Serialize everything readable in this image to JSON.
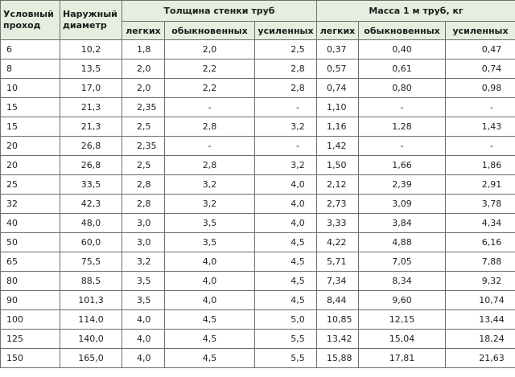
{
  "table": {
    "headers": {
      "nominal": "Условный проход",
      "outer": "Наружный диаметр",
      "wall_group": "Толщина стенки труб",
      "mass_group": "Масса 1 м труб, кг",
      "wall_sub": [
        "легких",
        "обыкновенных",
        "усиленных"
      ],
      "mass_sub": [
        "легких",
        "обыкновенных",
        "усиленных"
      ]
    },
    "rows": [
      [
        "6",
        "10,2",
        "1,8",
        "2,0",
        "2,5",
        "0,37",
        "0,40",
        "0,47"
      ],
      [
        "8",
        "13,5",
        "2,0",
        "2,2",
        "2,8",
        "0,57",
        "0,61",
        "0,74"
      ],
      [
        "10",
        "17,0",
        "2,0",
        "2,2",
        "2,8",
        "0,74",
        "0,80",
        "0,98"
      ],
      [
        "15",
        "21,3",
        "2,35",
        "-",
        "-",
        "1,10",
        "-",
        "-"
      ],
      [
        "15",
        "21,3",
        "2,5",
        "2,8",
        "3,2",
        "1,16",
        "1,28",
        "1,43"
      ],
      [
        "20",
        "26,8",
        "2,35",
        "-",
        "-",
        "1,42",
        "-",
        "-"
      ],
      [
        "20",
        "26,8",
        "2,5",
        "2,8",
        "3,2",
        "1,50",
        "1,66",
        "1,86"
      ],
      [
        "25",
        "33,5",
        "2,8",
        "3,2",
        "4,0",
        "2,12",
        "2,39",
        "2,91"
      ],
      [
        "32",
        "42,3",
        "2,8",
        "3,2",
        "4,0",
        "2,73",
        "3,09",
        "3,78"
      ],
      [
        "40",
        "48,0",
        "3,0",
        "3,5",
        "4,0",
        "3,33",
        "3,84",
        "4,34"
      ],
      [
        "50",
        "60,0",
        "3,0",
        "3,5",
        "4,5",
        "4,22",
        "4,88",
        "6,16"
      ],
      [
        "65",
        "75,5",
        "3,2",
        "4,0",
        "4,5",
        "5,71",
        "7,05",
        "7,88"
      ],
      [
        "80",
        "88,5",
        "3,5",
        "4,0",
        "4,5",
        "7,34",
        "8,34",
        "9,32"
      ],
      [
        "90",
        "101,3",
        "3,5",
        "4,0",
        "4,5",
        "8,44",
        "9,60",
        "10,74"
      ],
      [
        "100",
        "114,0",
        "4,0",
        "4,5",
        "5,0",
        "10,85",
        "12,15",
        "13,44"
      ],
      [
        "125",
        "140,0",
        "4,0",
        "4,5",
        "5,5",
        "13,42",
        "15,04",
        "18,24"
      ],
      [
        "150",
        "165,0",
        "4,0",
        "4,5",
        "5,5",
        "15,88",
        "17,81",
        "21,63"
      ]
    ]
  }
}
